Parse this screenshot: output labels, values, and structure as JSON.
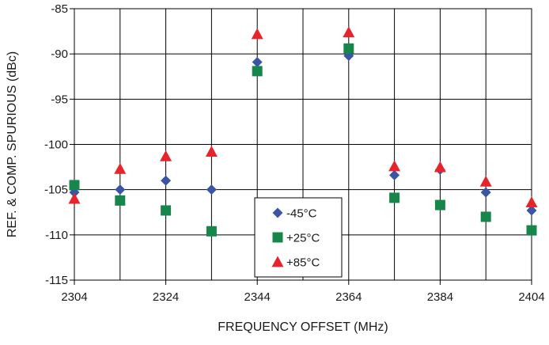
{
  "chart_data": {
    "type": "scatter",
    "title": "",
    "xlabel": "FREQUENCY OFFSET (MHz)",
    "ylabel": "REF. & COMP. SPURIOUS (dBc)",
    "xlim": [
      2304,
      2404
    ],
    "ylim": [
      -115,
      -85
    ],
    "xticks": [
      2304,
      2324,
      2344,
      2364,
      2384,
      2404
    ],
    "yticks": [
      -115,
      -110,
      -105,
      -100,
      -95,
      -90,
      -85
    ],
    "xtick_labels": [
      "2304",
      "2324",
      "2344",
      "2364",
      "2384",
      "2404"
    ],
    "ytick_labels": [
      "-115",
      "-110",
      "-105",
      "-100",
      "-95",
      "-90",
      "-85"
    ],
    "x_grid_step": 10,
    "grid": true,
    "legend_position": "bottom-center",
    "x": [
      2304,
      2314,
      2324,
      2334,
      2344,
      2364,
      2374,
      2384,
      2394,
      2404
    ],
    "series": [
      {
        "name": "-45°C",
        "marker": "diamond",
        "color": "#3a55a4",
        "values": [
          -105.3,
          -105.0,
          -104.0,
          -105.0,
          -90.9,
          -90.2,
          -103.4,
          -102.8,
          -105.3,
          -107.3
        ]
      },
      {
        "name": "+25°C",
        "marker": "square",
        "color": "#17864a",
        "values": [
          -104.5,
          -106.2,
          -107.3,
          -109.6,
          -91.9,
          -89.4,
          -105.9,
          -106.7,
          -108.0,
          -109.5
        ]
      },
      {
        "name": "+85°C",
        "marker": "triangle",
        "color": "#e8232a",
        "values": [
          -106.0,
          -102.7,
          -101.3,
          -100.8,
          -87.8,
          -87.6,
          -102.4,
          -102.5,
          -104.1,
          -106.4
        ]
      }
    ]
  }
}
